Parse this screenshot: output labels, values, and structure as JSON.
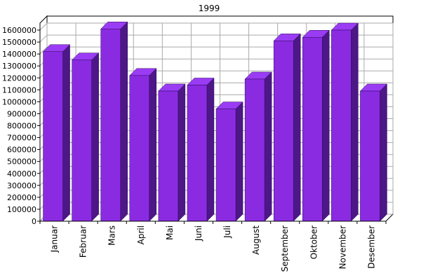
{
  "chart_data": {
    "type": "bar",
    "title": "1999",
    "xlabel": "",
    "ylabel": "",
    "categories": [
      "Januar",
      "Februar",
      "Mars",
      "April",
      "Mai",
      "Juni",
      "Juli",
      "August",
      "September",
      "Oktober",
      "November",
      "Desember"
    ],
    "values": [
      1420000,
      1350000,
      1610000,
      1220000,
      1090000,
      1140000,
      940000,
      1190000,
      1510000,
      1540000,
      1600000,
      1090000
    ],
    "ylim": [
      0,
      1600000
    ],
    "yticks": [
      "0",
      "100000",
      "200000",
      "300000",
      "400000",
      "500000",
      "600000",
      "700000",
      "800000",
      "900000",
      "1000000",
      "1100000",
      "1200000",
      "1300000",
      "1400000",
      "1500000",
      "1600000"
    ],
    "grid": true,
    "style": "3d",
    "colors": {
      "bar_front": "#8a2be2",
      "bar_top": "#9b3cf5",
      "bar_side": "#4d1787",
      "grid": "#aaaaaa",
      "wall": "#ffffff",
      "axis": "#000000"
    }
  }
}
